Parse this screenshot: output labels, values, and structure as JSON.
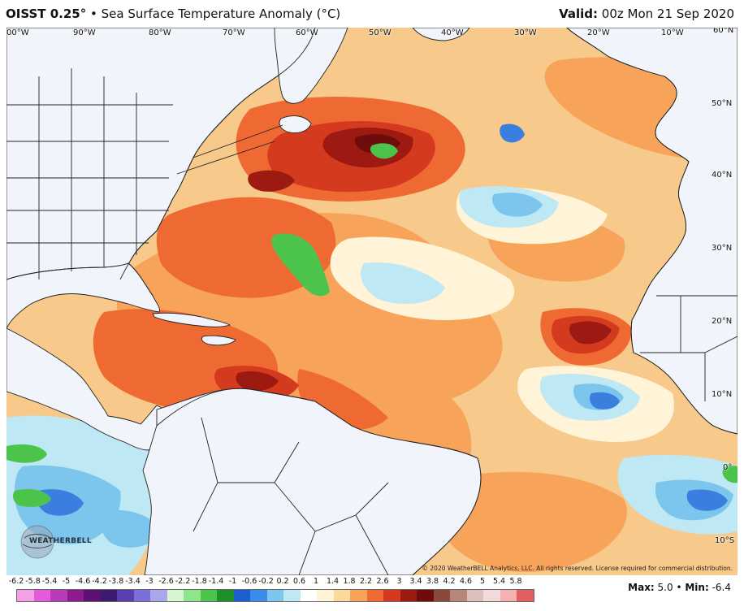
{
  "header": {
    "product": "OISST 0.25°",
    "subtitle": " • Sea Surface Temperature Anomaly (°C)",
    "valid_label": "Valid:",
    "valid_time": " 00z Mon 21 Sep 2020"
  },
  "map": {
    "lon_labels": [
      "00°W",
      "90°W",
      "80°W",
      "70°W",
      "60°W",
      "50°W",
      "40°W",
      "30°W",
      "20°W",
      "10°W",
      "60°N"
    ],
    "lat_labels": [
      "50°N",
      "40°N",
      "30°N",
      "20°N",
      "10°N",
      "0°",
      "10°S"
    ],
    "copyright": "© 2020 WeatherBELL Analytics, LLC. All rights reserved. License required for commercial distribution.",
    "logo_text": "WEATHERBELL",
    "colors": {
      "ocean_base": "#f7c98a",
      "warm_1": "#f7a35a",
      "warm_2": "#ef6a32",
      "warm_3": "#d43a1e",
      "warm_4": "#9c1a12",
      "warm_5": "#6e0c0c",
      "neutral": "#fff3d8",
      "cool_1": "#bde8f4",
      "cool_2": "#7cc6ee",
      "cool_3": "#3a7fe0",
      "green": "#4cc44c",
      "land": "#f2f4fb",
      "border": "#222222"
    }
  },
  "legend": {
    "ticks": [
      "-6.2",
      "-5.8",
      "-5.4",
      "-5",
      "-4.6",
      "-4.2",
      "-3.8",
      "-3.4",
      "-3",
      "-2.6",
      "-2.2",
      "-1.8",
      "-1.4",
      "-1",
      "-0.6",
      "-0.2",
      "0.2",
      "0.6",
      "1",
      "1.4",
      "1.8",
      "2.2",
      "2.6",
      "3",
      "3.4",
      "3.8",
      "4.2",
      "4.6",
      "5",
      "5.4",
      "5.8"
    ],
    "colors": [
      "#f59fe9",
      "#e45ad8",
      "#b73ab8",
      "#8a1c8e",
      "#5c1070",
      "#3c1a6e",
      "#5b3fb0",
      "#7c6fd8",
      "#a9a6ec",
      "#d6f5d0",
      "#8ee68a",
      "#4cc44c",
      "#1f8f2a",
      "#1e5fd0",
      "#3a8ce8",
      "#7cc6ee",
      "#bde8f4",
      "#ffffff",
      "#fff3d8",
      "#fbd89b",
      "#f7a35a",
      "#ef6a32",
      "#d43a1e",
      "#9c1a12",
      "#6e0c0c",
      "#8a4a3a",
      "#b7867a",
      "#dbbfb8",
      "#f3dada",
      "#f5b0b0",
      "#e06060"
    ]
  },
  "stats": {
    "max_label": "Max:",
    "max_value": " 5.0",
    "sep": " • ",
    "min_label": "Min:",
    "min_value": " -6.4"
  }
}
